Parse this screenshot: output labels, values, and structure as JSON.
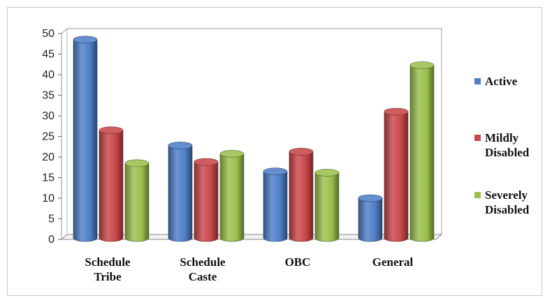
{
  "chart_data": {
    "type": "bar",
    "style": "3d-cylinder",
    "categories": [
      [
        "Schedule",
        "Tribe"
      ],
      [
        "Schedule",
        "Caste"
      ],
      [
        "OBC"
      ],
      [
        "General"
      ]
    ],
    "series": [
      {
        "name": [
          "Active"
        ],
        "color": "#4f7fc8",
        "values": [
          48.5,
          22.8,
          16.5,
          10.0
        ]
      },
      {
        "name": [
          "Mildly",
          "Disabled"
        ],
        "color": "#c9474a",
        "values": [
          26.5,
          18.8,
          21.3,
          31.0
        ]
      },
      {
        "name": [
          "Severely",
          "Disabled"
        ],
        "color": "#9bc04e",
        "values": [
          18.5,
          20.8,
          16.2,
          42.3
        ]
      }
    ],
    "y_ticks": [
      "0",
      "5",
      "10",
      "15",
      "20",
      "25",
      "30",
      "35",
      "40",
      "45",
      "50"
    ],
    "ylim": [
      0,
      50
    ],
    "grid": false,
    "legend_position": "right"
  }
}
